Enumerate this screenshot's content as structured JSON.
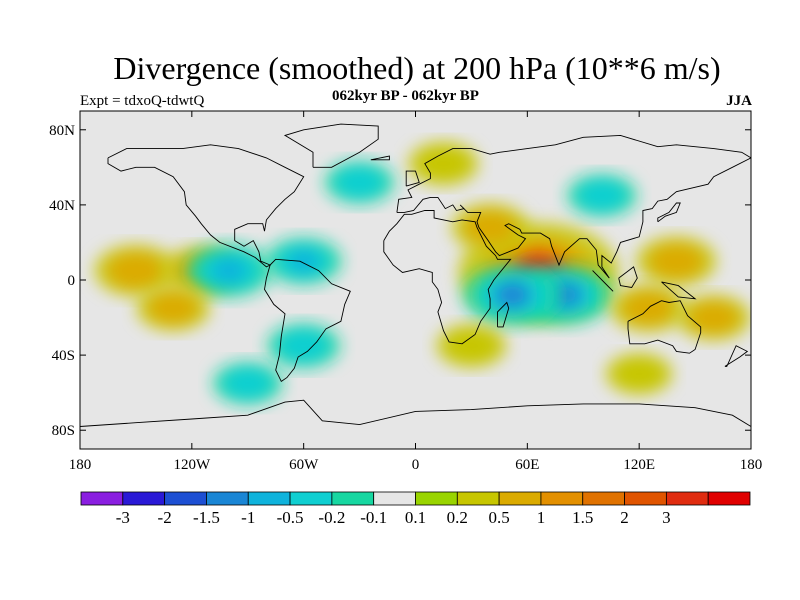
{
  "title": "Divergence (smoothed) at 200 hPa (10**6 m/s)",
  "experiment": "Expt = tdxoQ-tdwtQ",
  "period": "062kyr BP - 062kyr BP",
  "season": "JJA",
  "map": {
    "projection": "equirectangular",
    "lon_range": [
      -180,
      180
    ],
    "lat_range": [
      -90,
      90
    ],
    "x_ticks": [
      "180",
      "120W",
      "60W",
      "0",
      "60E",
      "120E",
      "180"
    ],
    "y_ticks": [
      "80N",
      "40N",
      "0",
      "40S",
      "80S"
    ],
    "land_outline_color": "#000000",
    "missing_color": "#e6e6e6"
  },
  "colorbar": {
    "colors": [
      "#8a1ee0",
      "#2a19d6",
      "#1d4fd3",
      "#1a86d5",
      "#0fb3dc",
      "#10cfd1",
      "#17d7a1",
      "#e6e6e6",
      "#99d400",
      "#c7c600",
      "#dbab00",
      "#e39000",
      "#e07200",
      "#e05400",
      "#e02c10",
      "#e00000"
    ],
    "labels": [
      "-3",
      "-2",
      "-1.5",
      "-1",
      "-0.5",
      "-0.2",
      "-0.1",
      "0.1",
      "0.2",
      "0.5",
      "1",
      "1.5",
      "2",
      "3"
    ]
  },
  "field_anomalies": [
    {
      "lon": 66,
      "lat": 4,
      "value": 3.2
    },
    {
      "lon": 80,
      "lat": -8,
      "value": -1.2
    },
    {
      "lon": 52,
      "lat": -8,
      "value": -1.3
    },
    {
      "lon": 40,
      "lat": 28,
      "value": 0.6
    },
    {
      "lon": 140,
      "lat": 10,
      "value": 0.7
    },
    {
      "lon": 125,
      "lat": -15,
      "value": 0.6
    },
    {
      "lon": -150,
      "lat": 5,
      "value": 0.8
    },
    {
      "lon": -115,
      "lat": 5,
      "value": 0.6
    },
    {
      "lon": -100,
      "lat": 5,
      "value": -0.9
    },
    {
      "lon": -60,
      "lat": 10,
      "value": -0.6
    },
    {
      "lon": -130,
      "lat": -15,
      "value": 0.5
    },
    {
      "lon": 160,
      "lat": -20,
      "value": 0.5
    },
    {
      "lon": -30,
      "lat": 52,
      "value": -0.4
    },
    {
      "lon": 15,
      "lat": 62,
      "value": 0.4
    },
    {
      "lon": 100,
      "lat": 45,
      "value": -0.4
    },
    {
      "lon": -60,
      "lat": -35,
      "value": -0.5
    },
    {
      "lon": 30,
      "lat": -35,
      "value": 0.4
    },
    {
      "lon": -90,
      "lat": -55,
      "value": -0.4
    },
    {
      "lon": 120,
      "lat": -50,
      "value": 0.3
    }
  ]
}
